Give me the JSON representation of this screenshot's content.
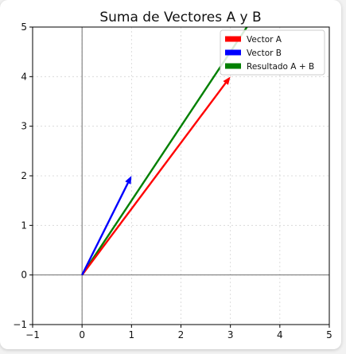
{
  "chart_data": {
    "type": "vector",
    "title": "Suma de Vectores A y B",
    "xlabel": "",
    "ylabel": "",
    "xlim": [
      -1,
      5
    ],
    "ylim": [
      -1,
      5
    ],
    "xticks": [
      "−1",
      "0",
      "1",
      "2",
      "3",
      "4",
      "5"
    ],
    "yticks": [
      "−1",
      "0",
      "1",
      "2",
      "3",
      "4",
      "5"
    ],
    "grid": true,
    "legend_position": "top-right",
    "series": [
      {
        "name": "Vector A",
        "color": "#ff0000",
        "from": [
          0,
          0
        ],
        "to": [
          3,
          4
        ]
      },
      {
        "name": "Vector B",
        "color": "#0000ff",
        "from": [
          0,
          0
        ],
        "to": [
          1,
          2
        ]
      },
      {
        "name": "Resultado A + B",
        "color": "#008000",
        "from": [
          0,
          0
        ],
        "to": [
          4,
          6
        ]
      }
    ]
  }
}
